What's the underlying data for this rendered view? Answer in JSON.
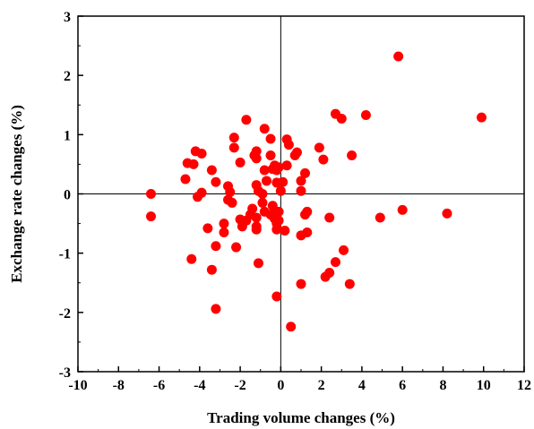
{
  "chart_data": {
    "type": "scatter",
    "xlabel": "Trading volume changes (%)",
    "ylabel": "Exchange rate changes (%)",
    "xlim": [
      -10,
      12
    ],
    "ylim": [
      -3,
      3
    ],
    "xticks": [
      -10,
      -8,
      -6,
      -4,
      -2,
      0,
      2,
      4,
      6,
      8,
      10,
      12
    ],
    "yticks": [
      -3,
      -2,
      -1,
      0,
      1,
      2,
      3
    ],
    "zero_lines": true,
    "grid": false,
    "marker_color": "#ff0000",
    "points": [
      [
        5.8,
        2.32
      ],
      [
        9.9,
        1.29
      ],
      [
        2.7,
        1.35
      ],
      [
        3.0,
        1.27
      ],
      [
        4.2,
        1.33
      ],
      [
        -1.7,
        1.25
      ],
      [
        -0.8,
        1.1
      ],
      [
        -2.3,
        0.95
      ],
      [
        -1.2,
        0.72
      ],
      [
        -0.5,
        0.93
      ],
      [
        0.3,
        0.92
      ],
      [
        0.4,
        0.83
      ],
      [
        0.8,
        0.7
      ],
      [
        0.7,
        0.65
      ],
      [
        1.9,
        0.78
      ],
      [
        2.1,
        0.58
      ],
      [
        3.5,
        0.65
      ],
      [
        -4.2,
        0.72
      ],
      [
        -3.9,
        0.68
      ],
      [
        -4.6,
        0.52
      ],
      [
        -4.3,
        0.5
      ],
      [
        -2.3,
        0.78
      ],
      [
        -1.3,
        0.65
      ],
      [
        -1.2,
        0.6
      ],
      [
        -2.0,
        0.53
      ],
      [
        -0.5,
        0.65
      ],
      [
        -0.3,
        0.48
      ],
      [
        0.3,
        0.48
      ],
      [
        -0.8,
        0.4
      ],
      [
        -0.2,
        0.4
      ],
      [
        -0.1,
        0.45
      ],
      [
        -0.4,
        0.42
      ],
      [
        1.2,
        0.35
      ],
      [
        -4.7,
        0.25
      ],
      [
        -3.4,
        0.4
      ],
      [
        -3.2,
        0.2
      ],
      [
        -2.6,
        0.13
      ],
      [
        -1.2,
        0.15
      ],
      [
        -0.7,
        0.22
      ],
      [
        0.1,
        0.2
      ],
      [
        -0.2,
        0.19
      ],
      [
        1.0,
        0.22
      ],
      [
        -6.4,
        0.0
      ],
      [
        -3.9,
        0.02
      ],
      [
        -4.1,
        -0.05
      ],
      [
        -2.5,
        0.03
      ],
      [
        -1.1,
        0.05
      ],
      [
        -0.9,
        0.0
      ],
      [
        0.0,
        0.05
      ],
      [
        1.0,
        0.05
      ],
      [
        -2.6,
        -0.1
      ],
      [
        -2.4,
        -0.15
      ],
      [
        -1.4,
        -0.25
      ],
      [
        -0.9,
        -0.15
      ],
      [
        -0.4,
        -0.2
      ],
      [
        -0.1,
        -0.3
      ],
      [
        -1.7,
        -0.45
      ],
      [
        -2.0,
        -0.43
      ],
      [
        -1.9,
        -0.55
      ],
      [
        -1.5,
        -0.35
      ],
      [
        -1.2,
        -0.4
      ],
      [
        -0.8,
        -0.3
      ],
      [
        -0.5,
        -0.35
      ],
      [
        -0.3,
        -0.3
      ],
      [
        -0.2,
        -0.5
      ],
      [
        -0.1,
        -0.45
      ],
      [
        -0.3,
        -0.42
      ],
      [
        1.2,
        -0.35
      ],
      [
        1.3,
        -0.3
      ],
      [
        2.4,
        -0.4
      ],
      [
        -6.4,
        -0.38
      ],
      [
        -3.6,
        -0.58
      ],
      [
        -2.8,
        -0.5
      ],
      [
        -2.8,
        -0.65
      ],
      [
        -1.2,
        -0.55
      ],
      [
        -1.2,
        -0.6
      ],
      [
        -0.2,
        -0.6
      ],
      [
        0.2,
        -0.62
      ],
      [
        1.3,
        -0.65
      ],
      [
        1.0,
        -0.7
      ],
      [
        -3.2,
        -0.88
      ],
      [
        -2.2,
        -0.9
      ],
      [
        3.1,
        -0.95
      ],
      [
        4.9,
        -0.4
      ],
      [
        6.0,
        -0.27
      ],
      [
        8.2,
        -0.33
      ],
      [
        -4.4,
        -1.1
      ],
      [
        -1.1,
        -1.17
      ],
      [
        -3.4,
        -1.28
      ],
      [
        2.7,
        -1.15
      ],
      [
        2.4,
        -1.33
      ],
      [
        2.2,
        -1.4
      ],
      [
        1.0,
        -1.52
      ],
      [
        3.4,
        -1.52
      ],
      [
        -0.2,
        -1.73
      ],
      [
        -3.2,
        -1.94
      ],
      [
        0.5,
        -2.24
      ]
    ]
  }
}
